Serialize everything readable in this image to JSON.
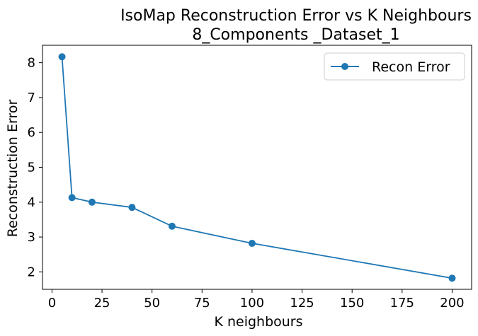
{
  "chart_data": {
    "type": "line",
    "title": "IsoMap Reconstruction Error vs K Neighbours",
    "subtitle": "8_Components _Dataset_1",
    "xlabel": "K neighbours",
    "ylabel": "Reconstruction Error",
    "xlim": [
      -4.75,
      209.75
    ],
    "ylim": [
      1.5,
      8.5
    ],
    "xticks": [
      0,
      25,
      50,
      75,
      100,
      125,
      150,
      175,
      200
    ],
    "yticks": [
      2,
      3,
      4,
      5,
      6,
      7,
      8
    ],
    "grid": false,
    "legend_position": "top-right",
    "series": [
      {
        "name": "Recon Error",
        "color": "#1f77b4",
        "marker": "circle",
        "x": [
          5,
          10,
          20,
          40,
          60,
          100,
          200
        ],
        "y": [
          8.17,
          4.13,
          4.0,
          3.85,
          3.31,
          2.82,
          1.82
        ]
      }
    ]
  }
}
